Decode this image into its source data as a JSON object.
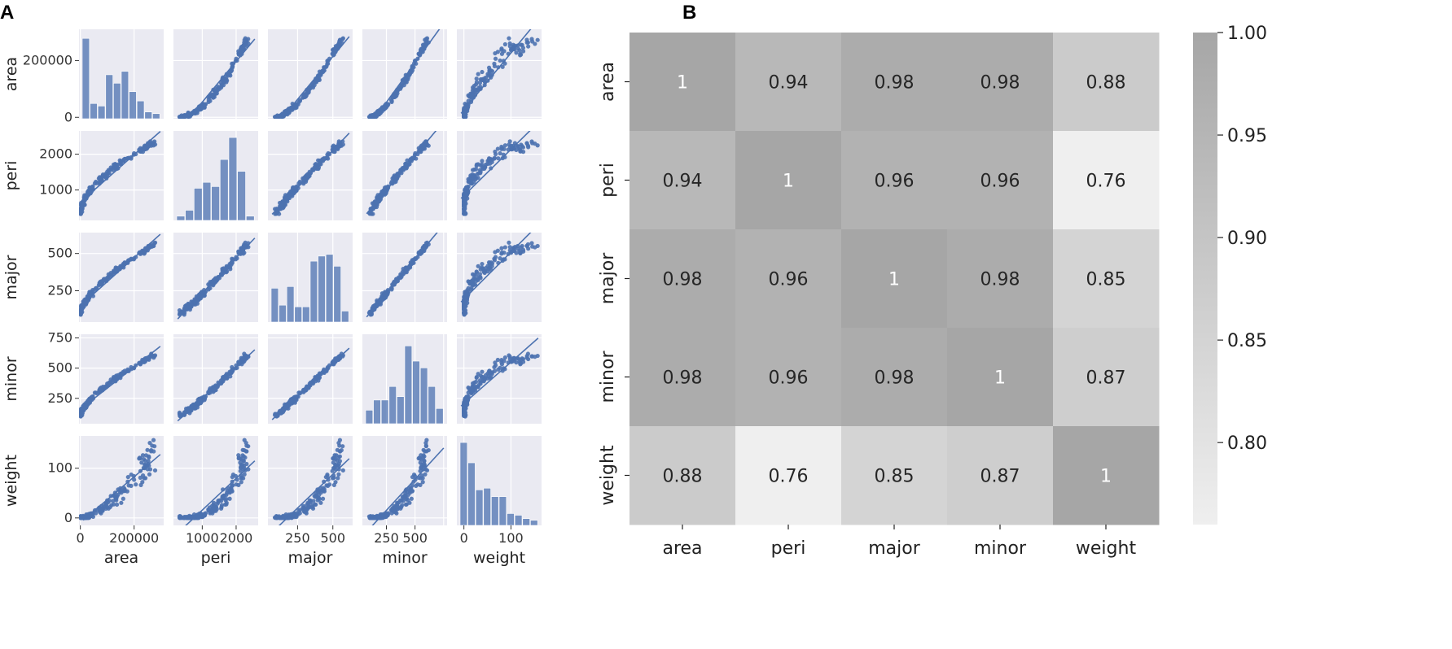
{
  "panels": {
    "left": "A",
    "right": "B"
  },
  "chart_data": [
    {
      "type": "scatter",
      "subtype": "pairplot",
      "variables": [
        "area",
        "peri",
        "major",
        "minor",
        "weight"
      ],
      "ranges": {
        "area": [
          -5000,
          310000
        ],
        "peri": [
          150,
          2650
        ],
        "major": [
          40,
          640
        ],
        "minor": [
          40,
          780
        ],
        "weight": [
          -15,
          165
        ]
      },
      "ticks": {
        "area": [
          0,
          200000
        ],
        "peri": [
          1000,
          2000
        ],
        "major": [
          250,
          500
        ],
        "minor": [
          250,
          500,
          750
        ],
        "weight": [
          0,
          100
        ]
      },
      "row_tick_labels": {
        "area": [
          "0",
          "200000"
        ],
        "peri": [
          "1000",
          "2000"
        ],
        "major": [
          "250",
          "500"
        ],
        "minor": [
          "250",
          "500",
          "750"
        ],
        "weight": [
          "0",
          "100"
        ]
      },
      "col_tick_labels": {
        "area": [
          "0",
          "200000"
        ],
        "peri": [
          "1000",
          "2000"
        ],
        "major": [
          "250",
          "500"
        ],
        "minor": [
          "250",
          "500"
        ],
        "weight": [
          "0",
          "100"
        ]
      },
      "histograms": {
        "area": [
          0.95,
          0.18,
          0.15,
          0.52,
          0.42,
          0.56,
          0.32,
          0.21,
          0.08,
          0.06
        ],
        "peri": [
          0.05,
          0.12,
          0.38,
          0.45,
          0.4,
          0.72,
          0.98,
          0.58,
          0.05
        ],
        "major": [
          0.4,
          0.2,
          0.42,
          0.18,
          0.18,
          0.72,
          0.78,
          0.8,
          0.66,
          0.13
        ],
        "minor": [
          0.16,
          0.28,
          0.28,
          0.44,
          0.32,
          0.92,
          0.74,
          0.66,
          0.44,
          0.18
        ],
        "weight": [
          0.98,
          0.74,
          0.42,
          0.44,
          0.34,
          0.34,
          0.14,
          0.12,
          0.08,
          0.06
        ]
      },
      "color": "#4c72b0",
      "background": "#eaeaf2"
    },
    {
      "type": "heatmap",
      "title": "",
      "labels": [
        "area",
        "peri",
        "major",
        "minor",
        "weight"
      ],
      "values": [
        [
          1,
          0.94,
          0.98,
          0.98,
          0.88
        ],
        [
          0.94,
          1,
          0.96,
          0.96,
          0.76
        ],
        [
          0.98,
          0.96,
          1,
          0.98,
          0.85
        ],
        [
          0.98,
          0.96,
          0.98,
          1,
          0.87
        ],
        [
          0.88,
          0.76,
          0.85,
          0.87,
          1
        ]
      ],
      "annotations": [
        [
          "1",
          "0.94",
          "0.98",
          "0.98",
          "0.88"
        ],
        [
          "0.94",
          "1",
          "0.96",
          "0.96",
          "0.76"
        ],
        [
          "0.98",
          "0.96",
          "1",
          "0.98",
          "0.85"
        ],
        [
          "0.98",
          "0.96",
          "0.98",
          "1",
          "0.87"
        ],
        [
          "0.88",
          "0.76",
          "0.85",
          "0.87",
          "1"
        ]
      ],
      "colorbar": {
        "range": [
          0.76,
          1.0
        ],
        "ticks": [
          1.0,
          0.95,
          0.9,
          0.85,
          0.8
        ],
        "tick_labels": [
          "1.00",
          "0.95",
          "0.90",
          "0.85",
          "0.80"
        ],
        "color_low": "#efefef",
        "color_high": "#a6a6a6"
      }
    }
  ]
}
